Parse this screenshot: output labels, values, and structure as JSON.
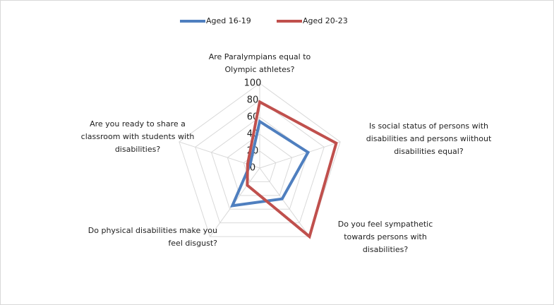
{
  "chart_data": {
    "type": "radar",
    "categories": [
      "Are Paralympians equal to Olympic athletes?",
      "Is social status of persons with disabilities and persons wiithout disabilities equal?",
      "Do you feel sympathetic towards persons with disabilities?",
      "Do physical disabilities make you feel disgust?",
      "Are you ready to share a classroom with students with disabilities?"
    ],
    "series": [
      {
        "name": "Aged 16-19",
        "color": "#4f7fbf",
        "values": [
          55,
          60,
          45,
          55,
          12
        ]
      },
      {
        "name": "Aged 20-23",
        "color": "#c0504d",
        "values": [
          78,
          95,
          100,
          25,
          15
        ]
      }
    ],
    "ylim": [
      0,
      100
    ],
    "yticks": [
      0,
      20,
      40,
      60,
      80,
      100
    ],
    "grid": true,
    "legend": "top"
  }
}
